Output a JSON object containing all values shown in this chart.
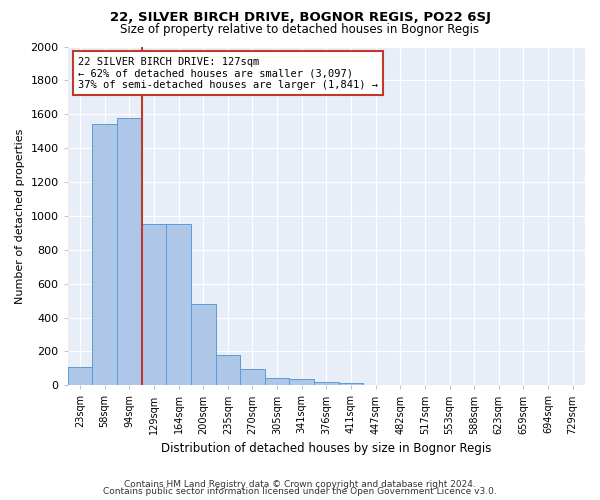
{
  "title1": "22, SILVER BIRCH DRIVE, BOGNOR REGIS, PO22 6SJ",
  "title2": "Size of property relative to detached houses in Bognor Regis",
  "xlabel": "Distribution of detached houses by size in Bognor Regis",
  "ylabel": "Number of detached properties",
  "bar_values": [
    110,
    1540,
    1575,
    950,
    950,
    480,
    180,
    95,
    45,
    35,
    20,
    15,
    0,
    0,
    0,
    0,
    0,
    0,
    0,
    0,
    0
  ],
  "categories": [
    "23sqm",
    "58sqm",
    "94sqm",
    "129sqm",
    "164sqm",
    "200sqm",
    "235sqm",
    "270sqm",
    "305sqm",
    "341sqm",
    "376sqm",
    "411sqm",
    "447sqm",
    "482sqm",
    "517sqm",
    "553sqm",
    "588sqm",
    "623sqm",
    "659sqm",
    "694sqm",
    "729sqm"
  ],
  "bar_color": "#aec6e8",
  "bar_edge_color": "#5b9bd5",
  "vline_x_idx": 2,
  "vline_color": "#c0392b",
  "annotation_text": "22 SILVER BIRCH DRIVE: 127sqm\n← 62% of detached houses are smaller (3,097)\n37% of semi-detached houses are larger (1,841) →",
  "annotation_box_color": "#c0392b",
  "ylim": [
    0,
    2000
  ],
  "yticks": [
    0,
    200,
    400,
    600,
    800,
    1000,
    1200,
    1400,
    1600,
    1800,
    2000
  ],
  "footer1": "Contains HM Land Registry data © Crown copyright and database right 2024.",
  "footer2": "Contains public sector information licensed under the Open Government Licence v3.0.",
  "bg_color": "#e8eef8"
}
